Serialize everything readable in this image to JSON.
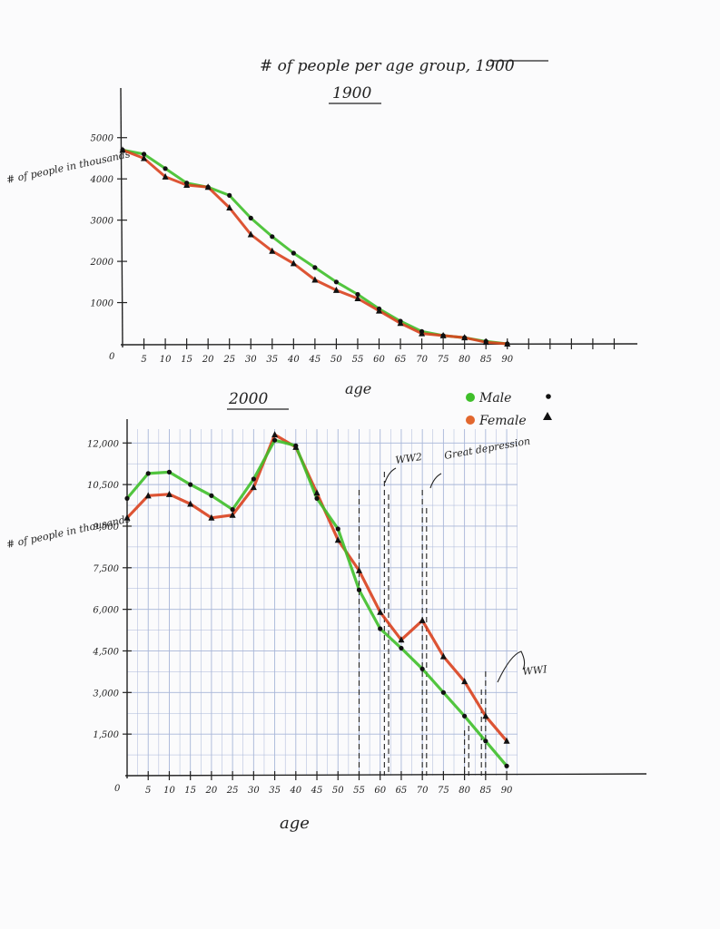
{
  "chart_data": [
    {
      "type": "line",
      "title": "# of people per age group, 1900",
      "title_strikethrough": "1900",
      "subtitle": "1900",
      "xlabel": "age",
      "ylabel": "# of people in thousands",
      "x_tick_labels": [
        "0",
        "5",
        "10",
        "15",
        "20",
        "25",
        "30",
        "35",
        "40",
        "45",
        "50",
        "55",
        "60",
        "65",
        "70",
        "75",
        "80",
        "85",
        "90"
      ],
      "y_tick_labels": [
        "1000",
        "2000",
        "3000",
        "4000",
        "5000"
      ],
      "xlim": [
        0,
        120
      ],
      "ylim": [
        0,
        5500
      ],
      "x": [
        0,
        5,
        10,
        15,
        20,
        25,
        30,
        35,
        40,
        45,
        50,
        55,
        60,
        65,
        70,
        75,
        80,
        85,
        90
      ],
      "series": [
        {
          "name": "Male",
          "marker": "circle",
          "color": "#3fbf2a",
          "values": [
            4700,
            4600,
            4250,
            3900,
            3800,
            3600,
            3050,
            2600,
            2200,
            1850,
            1500,
            1200,
            850,
            550,
            300,
            200,
            150,
            60,
            0
          ]
        },
        {
          "name": "Female",
          "marker": "triangle",
          "color": "#d9411e",
          "values": [
            4700,
            4500,
            4050,
            3850,
            3800,
            3300,
            2650,
            2250,
            1950,
            1550,
            1300,
            1100,
            800,
            500,
            250,
            200,
            150,
            40,
            0
          ]
        }
      ],
      "grid": false
    },
    {
      "type": "line",
      "title": "2000",
      "xlabel": "age",
      "ylabel": "# of people in thousands",
      "x_tick_labels": [
        "0",
        "5",
        "10",
        "15",
        "20",
        "25",
        "30",
        "35",
        "40",
        "45",
        "50",
        "55",
        "60",
        "65",
        "70",
        "75",
        "80",
        "85",
        "90"
      ],
      "y_tick_labels": [
        "1,500",
        "3,000",
        "4,500",
        "6,000",
        "7,500",
        "9,000",
        "10,500",
        "12,000"
      ],
      "xlim": [
        0,
        93
      ],
      "ylim": [
        0,
        12500
      ],
      "x": [
        0,
        5,
        10,
        15,
        20,
        25,
        30,
        35,
        40,
        45,
        50,
        55,
        60,
        65,
        70,
        75,
        80,
        85,
        90
      ],
      "series": [
        {
          "name": "Male",
          "marker": "circle",
          "color": "#3fbf2a",
          "values": [
            10000,
            10900,
            10950,
            10500,
            10100,
            9600,
            10700,
            12100,
            11900,
            10000,
            8900,
            6700,
            5300,
            4600,
            3850,
            3000,
            2150,
            1250,
            350
          ]
        },
        {
          "name": "Female",
          "marker": "triangle",
          "color": "#d9411e",
          "values": [
            9300,
            10100,
            10150,
            9800,
            9300,
            9400,
            10400,
            12300,
            11850,
            10200,
            8500,
            7400,
            5900,
            4900,
            5600,
            4300,
            3400,
            2150,
            1250
          ]
        }
      ],
      "legend": {
        "placement": "top-right",
        "entries": [
          {
            "label": "Male",
            "marker": "circle"
          },
          {
            "label": "Female",
            "marker": "triangle"
          }
        ]
      },
      "annotations": [
        {
          "text": "WW2",
          "x": 60
        },
        {
          "text": "Great depression",
          "x": 70
        },
        {
          "text": "WWI",
          "x": 85
        }
      ],
      "grid": true
    }
  ]
}
